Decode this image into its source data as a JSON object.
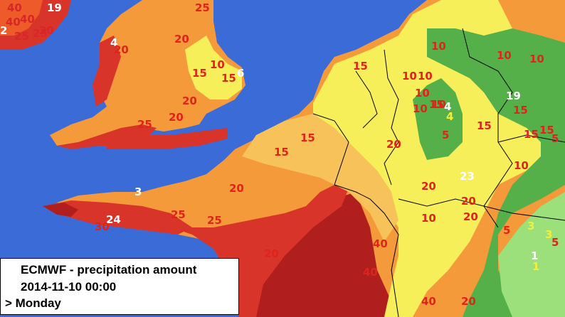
{
  "legend": {
    "title": "ECMWF - precipitation amount",
    "datetime": "2014-11-10 00:00",
    "day": "> Monday"
  },
  "colors": {
    "sea": "#3b6bd6",
    "dark_red": "#b01e1e",
    "red": "#d9342a",
    "orange_red": "#ee5a2a",
    "orange": "#f49a3b",
    "light_orange": "#f7c25a",
    "yellow": "#f7ef5a",
    "pale_yellow": "#fbf79a",
    "green": "#55b04a",
    "dark_green": "#3f9a42",
    "light_green": "#9be07a"
  },
  "labels": [
    {
      "text": "40",
      "tone": "dark"
    },
    {
      "text": "19",
      "tone": "white"
    },
    {
      "text": "2",
      "tone": "white"
    },
    {
      "text": "40",
      "tone": "dark"
    },
    {
      "text": "25",
      "tone": "dark"
    },
    {
      "text": "30",
      "tone": "dark"
    },
    {
      "text": "40",
      "tone": "dark"
    },
    {
      "text": "25",
      "tone": "dark"
    },
    {
      "text": "25",
      "tone": "red"
    },
    {
      "text": "4",
      "tone": "white"
    },
    {
      "text": "20",
      "tone": "red"
    },
    {
      "text": "20",
      "tone": "red"
    },
    {
      "text": "15",
      "tone": "red"
    },
    {
      "text": "10",
      "tone": "red"
    },
    {
      "text": "6",
      "tone": "white"
    },
    {
      "text": "15",
      "tone": "red"
    },
    {
      "text": "20",
      "tone": "red"
    },
    {
      "text": "20",
      "tone": "red"
    },
    {
      "text": "25",
      "tone": "red"
    },
    {
      "text": "15",
      "tone": "red"
    },
    {
      "text": "15",
      "tone": "red"
    },
    {
      "text": "15",
      "tone": "red"
    },
    {
      "text": "20",
      "tone": "red"
    },
    {
      "text": "10",
      "tone": "red"
    },
    {
      "text": "10",
      "tone": "red"
    },
    {
      "text": "10",
      "tone": "red"
    },
    {
      "text": "10",
      "tone": "red"
    },
    {
      "text": "10",
      "tone": "red"
    },
    {
      "text": "10",
      "tone": "red"
    },
    {
      "text": "15",
      "tone": "red"
    },
    {
      "text": "4",
      "tone": "white"
    },
    {
      "text": "4",
      "tone": "yellow"
    },
    {
      "text": "5",
      "tone": "red"
    },
    {
      "text": "15",
      "tone": "red"
    },
    {
      "text": "10",
      "tone": "red"
    },
    {
      "text": "19",
      "tone": "white"
    },
    {
      "text": "15",
      "tone": "red"
    },
    {
      "text": "15",
      "tone": "red"
    },
    {
      "text": "5",
      "tone": "red"
    },
    {
      "text": "15",
      "tone": "red"
    },
    {
      "text": "10",
      "tone": "red"
    },
    {
      "text": "10",
      "tone": "red"
    },
    {
      "text": "3",
      "tone": "white"
    },
    {
      "text": "20",
      "tone": "red"
    },
    {
      "text": "23",
      "tone": "white"
    },
    {
      "text": "20",
      "tone": "red"
    },
    {
      "text": "20",
      "tone": "red"
    },
    {
      "text": "20",
      "tone": "red"
    },
    {
      "text": "10",
      "tone": "red"
    },
    {
      "text": "24",
      "tone": "white"
    },
    {
      "text": "30",
      "tone": "red"
    },
    {
      "text": "25",
      "tone": "red"
    },
    {
      "text": "25",
      "tone": "red"
    },
    {
      "text": "20",
      "tone": "red"
    },
    {
      "text": "5",
      "tone": "red"
    },
    {
      "text": "3",
      "tone": "yellow"
    },
    {
      "text": "3",
      "tone": "yellow"
    },
    {
      "text": "5",
      "tone": "red"
    },
    {
      "text": "1",
      "tone": "white"
    },
    {
      "text": "40",
      "tone": "red"
    },
    {
      "text": "40",
      "tone": "red"
    },
    {
      "text": "40",
      "tone": "red"
    },
    {
      "text": "20",
      "tone": "red"
    },
    {
      "text": "1",
      "tone": "yellow"
    }
  ]
}
